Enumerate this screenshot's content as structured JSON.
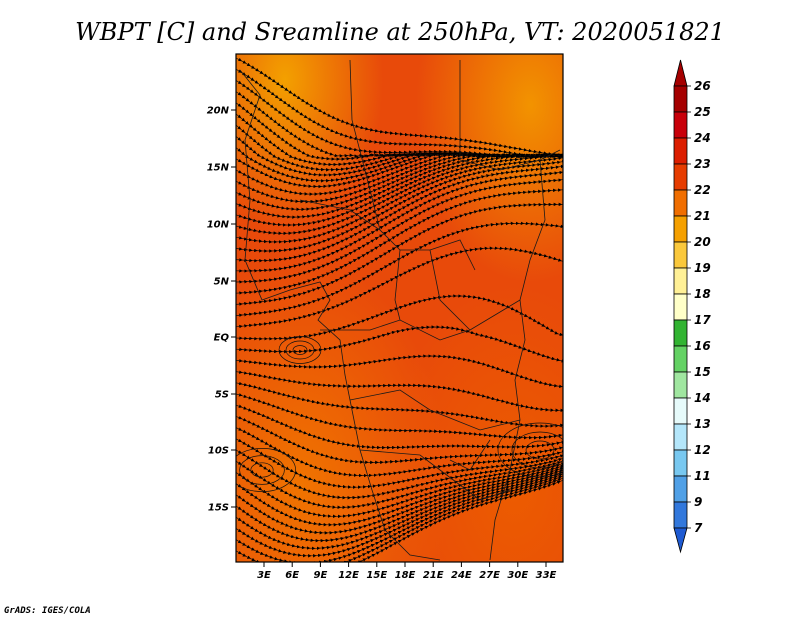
{
  "title": "WBPT [C] and Sreamline at 250hPa, VT: 2020051821",
  "credit": "GrADS: IGES/COLA",
  "map": {
    "lat_labels": [
      "20N",
      "15N",
      "10N",
      "5N",
      "EQ",
      "5S",
      "10S",
      "15S"
    ],
    "lon_labels": [
      "3E",
      "6E",
      "9E",
      "12E",
      "15E",
      "18E",
      "21E",
      "24E",
      "27E",
      "30E",
      "33E"
    ]
  },
  "colorbar": {
    "labels": [
      "26",
      "25",
      "24",
      "23",
      "22",
      "21",
      "20",
      "19",
      "18",
      "17",
      "16",
      "15",
      "14",
      "13",
      "12",
      "11",
      "9",
      "7"
    ],
    "colors": [
      "#a50000",
      "#c8000a",
      "#dc1e00",
      "#e63c00",
      "#f06e00",
      "#f5a000",
      "#fac83c",
      "#fff096",
      "#ffffc8",
      "#32b432",
      "#64d264",
      "#a0e6a0",
      "#e6fafa",
      "#b4e6fa",
      "#78c8f0",
      "#50a0e6",
      "#3278dc",
      "#1e5ad2"
    ]
  }
}
